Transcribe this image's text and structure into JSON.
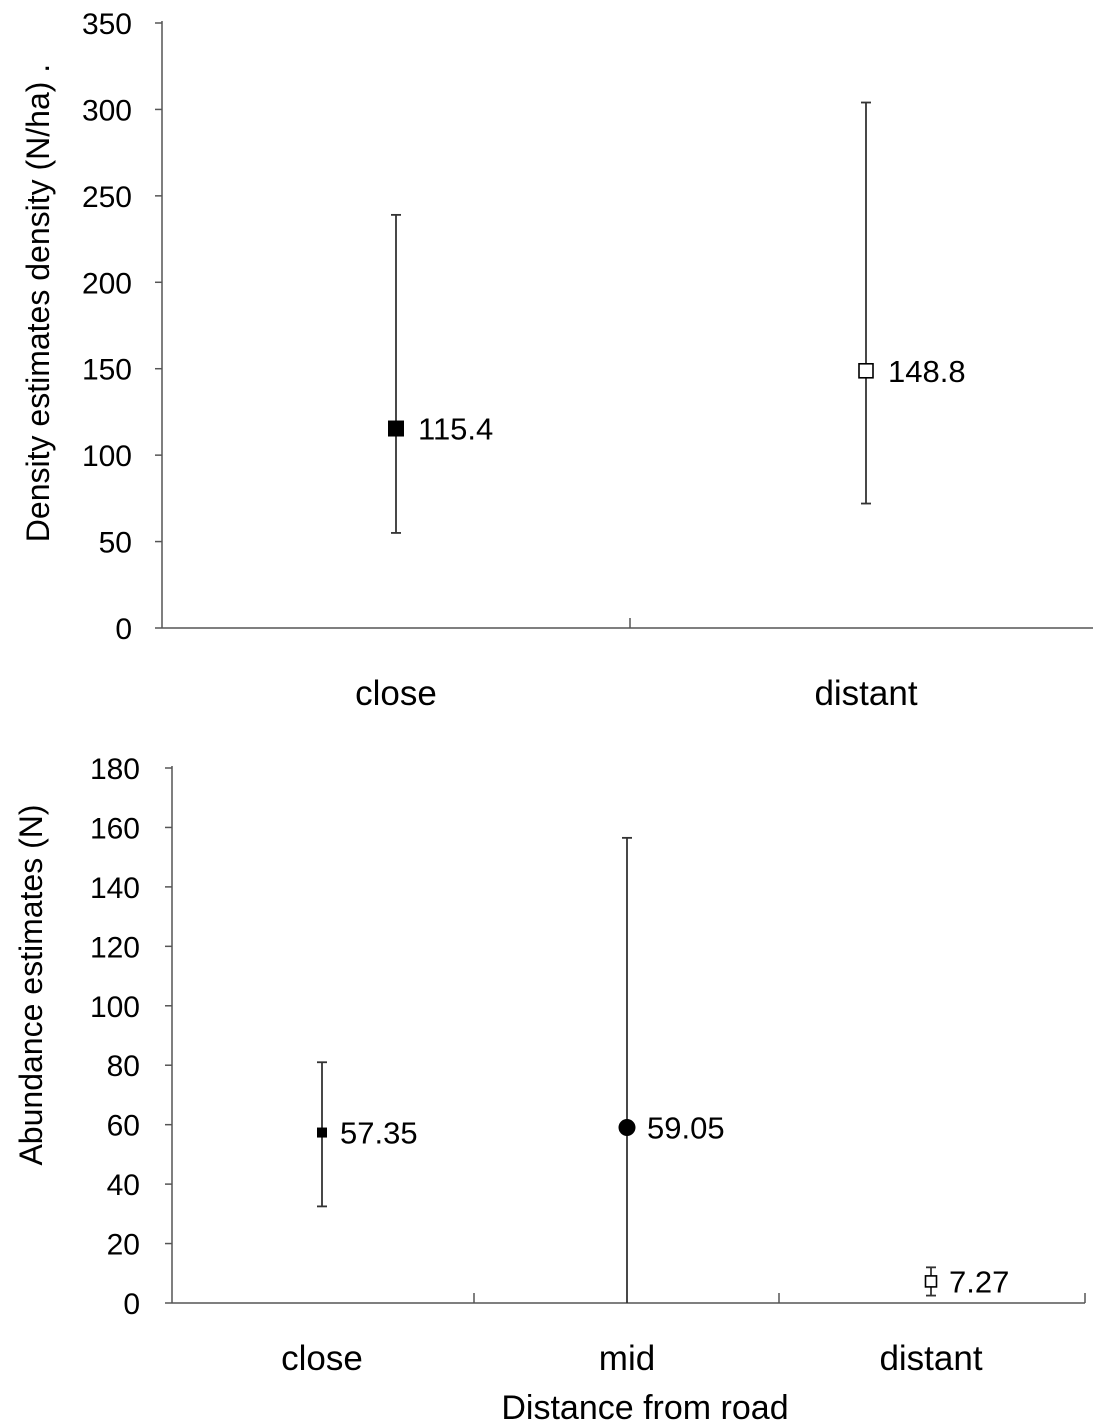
{
  "chart_data": [
    {
      "type": "scatter",
      "ylabel": "Density estimates density (N/ha) .",
      "xlabel": "",
      "ylim": [
        0,
        350
      ],
      "yticks": [
        0,
        50,
        100,
        150,
        200,
        250,
        300,
        350
      ],
      "categories": [
        "close",
        "distant"
      ],
      "points": [
        {
          "category": "close",
          "value": 115.4,
          "lower": 55,
          "upper": 239,
          "label": "115.4",
          "marker": "filled-square"
        },
        {
          "category": "distant",
          "value": 148.8,
          "lower": 72,
          "upper": 304,
          "label": "148.8",
          "marker": "open-square"
        }
      ],
      "grid": false,
      "legend": "none"
    },
    {
      "type": "scatter",
      "ylabel": "Abundance estimates (N)",
      "xlabel": "Distance from road",
      "ylim": [
        0,
        180
      ],
      "yticks": [
        0,
        20,
        40,
        60,
        80,
        100,
        120,
        140,
        160,
        180
      ],
      "categories": [
        "close",
        "mid",
        "distant"
      ],
      "points": [
        {
          "category": "close",
          "value": 57.35,
          "lower": 32.5,
          "upper": 81,
          "label": "57.35",
          "marker": "filled-small-square"
        },
        {
          "category": "mid",
          "value": 59.05,
          "lower": 0,
          "upper": 156.5,
          "label": "59.05",
          "marker": "filled-circle"
        },
        {
          "category": "distant",
          "value": 7.27,
          "lower": 2.5,
          "upper": 12,
          "label": "7.27",
          "marker": "open-square"
        }
      ],
      "grid": false,
      "legend": "none"
    }
  ]
}
